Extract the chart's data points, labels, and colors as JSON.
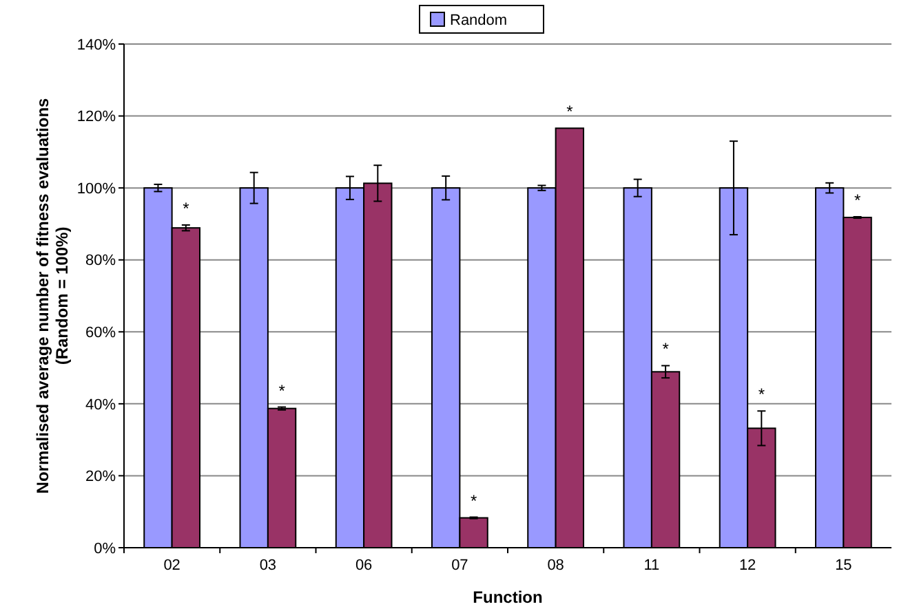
{
  "chart_data": {
    "type": "bar",
    "xlabel": "Function",
    "ylabel": "Normalised average number of fitness evaluations\n(Random = 100%)",
    "categories": [
      "02",
      "03",
      "06",
      "07",
      "08",
      "11",
      "12",
      "15"
    ],
    "series": [
      {
        "name": "Random",
        "color": "#9999ff",
        "values": [
          100,
          100,
          100,
          100,
          100,
          100,
          100,
          100
        ],
        "errors": [
          1,
          4.3,
          3.2,
          3.3,
          0.7,
          2.4,
          13,
          1.4
        ]
      },
      {
        "color": "#993366",
        "values": [
          88.9,
          38.7,
          101.3,
          8.3,
          116.6,
          48.9,
          33.2,
          91.8
        ],
        "errors": [
          0.8,
          0.4,
          5,
          0.2,
          null,
          1.7,
          4.8,
          0.2
        ]
      }
    ],
    "ylim": [
      0,
      140
    ],
    "yticks": [
      {
        "value": 0,
        "label": "0%"
      },
      {
        "value": 20,
        "label": "20%"
      },
      {
        "value": 40,
        "label": "40%"
      },
      {
        "value": 60,
        "label": "60%"
      },
      {
        "value": 80,
        "label": "80%"
      },
      {
        "value": 100,
        "label": "100%"
      },
      {
        "value": 120,
        "label": "120%"
      },
      {
        "value": 140,
        "label": "140%"
      }
    ],
    "grid": "y",
    "legend": "top",
    "annotations": [
      {
        "text": "*",
        "x": "02",
        "y": 88.9
      },
      {
        "text": "*",
        "x": "03",
        "y": 38.7
      },
      {
        "text": "*",
        "x": "07",
        "y": 8.3
      },
      {
        "text": "*",
        "x": "08",
        "y": 116.6
      },
      {
        "text": "*",
        "x": "11",
        "y": 48.9
      },
      {
        "text": "*",
        "x": "12",
        "y": 33.2
      },
      {
        "text": "*",
        "x": "15",
        "y": 91.8
      }
    ]
  }
}
